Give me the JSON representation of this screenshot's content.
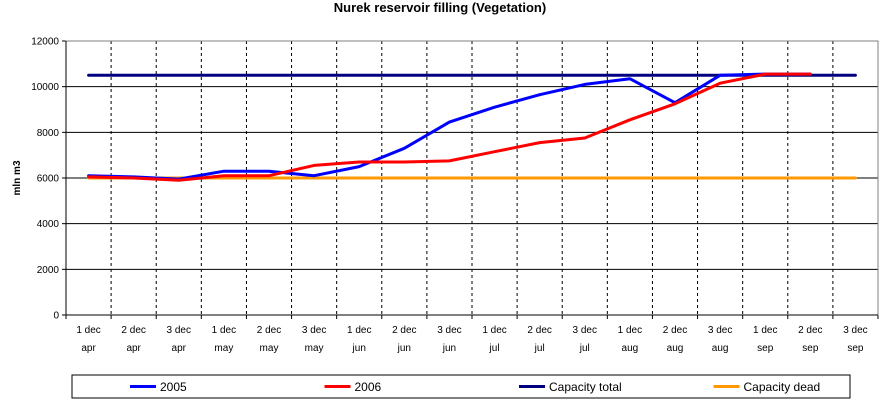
{
  "chart_data": {
    "type": "line",
    "title": "Nurek reservoir filling (Vegetation)",
    "xlabel": "",
    "ylabel": "mln m3",
    "ylim": [
      0,
      12000
    ],
    "yticks": [
      0,
      2000,
      4000,
      6000,
      8000,
      10000,
      12000
    ],
    "grid": true,
    "legend_position": "bottom",
    "categories": [
      [
        "1 dec",
        "apr"
      ],
      [
        "2 dec",
        "apr"
      ],
      [
        "3 dec",
        "apr"
      ],
      [
        "1 dec",
        "may"
      ],
      [
        "2 dec",
        "may"
      ],
      [
        "3 dec",
        "may"
      ],
      [
        "1 dec",
        "jun"
      ],
      [
        "2 dec",
        "jun"
      ],
      [
        "3 dec",
        "jun"
      ],
      [
        "1 dec",
        "jul"
      ],
      [
        "2 dec",
        "jul"
      ],
      [
        "3 dec",
        "jul"
      ],
      [
        "1 dec",
        "aug"
      ],
      [
        "2 dec",
        "aug"
      ],
      [
        "3 dec",
        "aug"
      ],
      [
        "1 dec",
        "sep"
      ],
      [
        "2 dec",
        "sep"
      ],
      [
        "3 dec",
        "sep"
      ]
    ],
    "series": [
      {
        "name": "2005",
        "color": "#0000ff",
        "values": [
          6100,
          6050,
          5950,
          6300,
          6300,
          6100,
          6500,
          7300,
          8450,
          9100,
          9650,
          10100,
          10350,
          9300,
          10500,
          10550,
          10550,
          null
        ]
      },
      {
        "name": "2006",
        "color": "#ff0000",
        "values": [
          6050,
          6000,
          5900,
          6100,
          6100,
          6550,
          6700,
          6700,
          6750,
          7150,
          7550,
          7750,
          8550,
          9250,
          10150,
          10550,
          10550,
          null
        ]
      },
      {
        "name": "Capacity total",
        "color": "#000080",
        "values": [
          10500,
          10500,
          10500,
          10500,
          10500,
          10500,
          10500,
          10500,
          10500,
          10500,
          10500,
          10500,
          10500,
          10500,
          10500,
          10500,
          10500,
          10500
        ]
      },
      {
        "name": "Capacity dead",
        "color": "#ff9900",
        "values": [
          6000,
          6000,
          6000,
          6000,
          6000,
          6000,
          6000,
          6000,
          6000,
          6000,
          6000,
          6000,
          6000,
          6000,
          6000,
          6000,
          6000,
          6000
        ]
      }
    ]
  }
}
